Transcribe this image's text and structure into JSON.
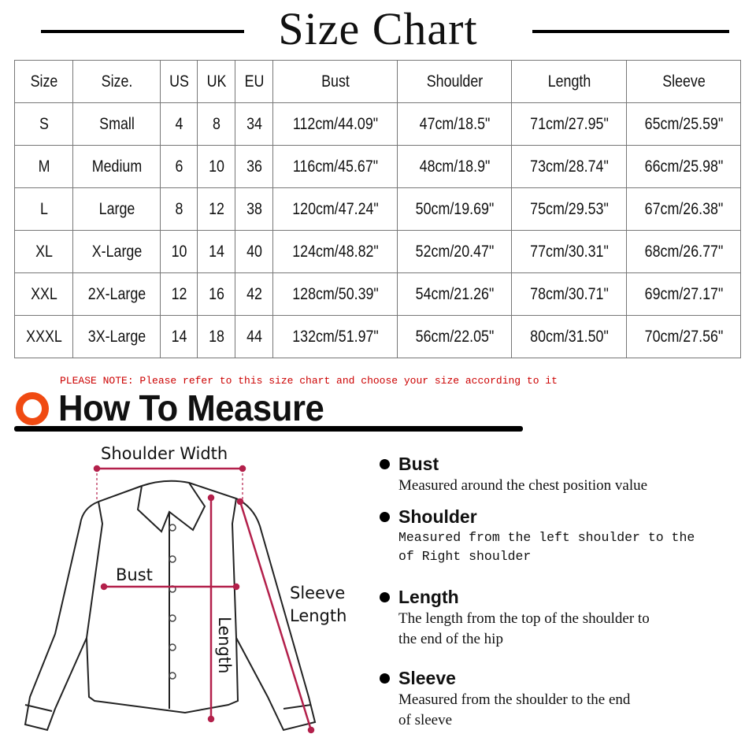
{
  "title": "Size Chart",
  "table": {
    "headers": [
      "Size",
      "Size.",
      "US",
      "UK",
      "EU",
      "Bust",
      "Shoulder",
      "Length",
      "Sleeve"
    ],
    "rows": [
      [
        "S",
        "Small",
        "4",
        "8",
        "34",
        "112cm/44.09\"",
        "47cm/18.5\"",
        "71cm/27.95\"",
        "65cm/25.59\""
      ],
      [
        "M",
        "Medium",
        "6",
        "10",
        "36",
        "116cm/45.67\"",
        "48cm/18.9\"",
        "73cm/28.74\"",
        "66cm/25.98\""
      ],
      [
        "L",
        "Large",
        "8",
        "12",
        "38",
        "120cm/47.24\"",
        "50cm/19.69\"",
        "75cm/29.53\"",
        "67cm/26.38\""
      ],
      [
        "XL",
        "X-Large",
        "10",
        "14",
        "40",
        "124cm/48.82\"",
        "52cm/20.47\"",
        "77cm/30.31\"",
        "68cm/26.77\""
      ],
      [
        "XXL",
        "2X-Large",
        "12",
        "16",
        "42",
        "128cm/50.39\"",
        "54cm/21.26\"",
        "78cm/30.71\"",
        "69cm/27.17\""
      ],
      [
        "XXXL",
        "3X-Large",
        "14",
        "18",
        "44",
        "132cm/51.97\"",
        "56cm/22.05\"",
        "80cm/31.50\"",
        "70cm/27.56\""
      ]
    ]
  },
  "note": "PLEASE NOTE: Please refer to this size chart and choose your size according to it",
  "how_to": "How To Measure",
  "diagram": {
    "shoulder_width": "Shoulder Width",
    "bust": "Bust",
    "sleeve_1": "Sleeve",
    "sleeve_2": "Length",
    "length": "Length"
  },
  "instructions": [
    {
      "title": "Bust",
      "lines": [
        "Measured around the chest position value"
      ]
    },
    {
      "title": "Shoulder",
      "lines": [
        "Measured from the left shoulder to the",
        "of Right shoulder"
      ]
    },
    {
      "title": "Length",
      "lines": [
        "The length from the top of the shoulder to",
        "the end of the hip"
      ]
    },
    {
      "title": "Sleeve",
      "lines": [
        "Measured from the shoulder to the end",
        "of sleeve"
      ]
    }
  ],
  "colors": {
    "accent": "#f04a12",
    "measure_line": "#b3204b",
    "note": "#cc0000"
  }
}
